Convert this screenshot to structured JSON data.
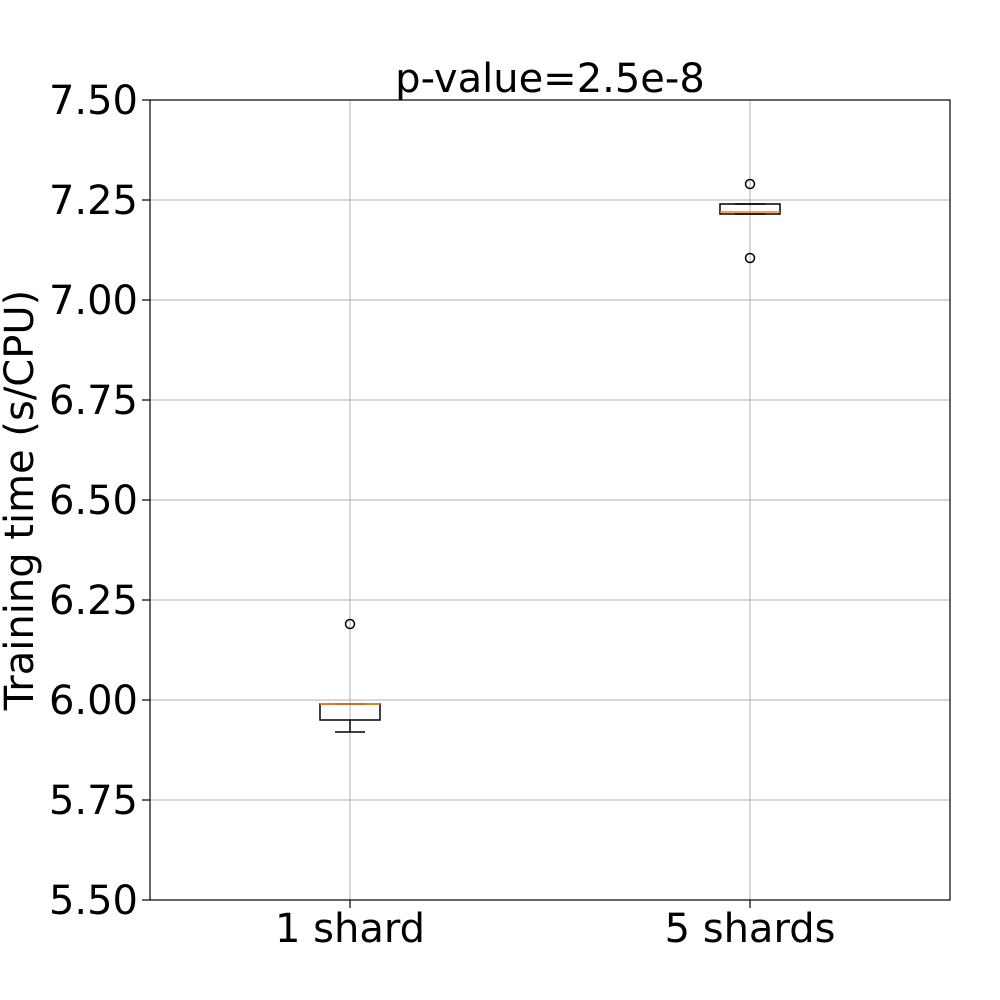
{
  "chart_data": {
    "type": "box",
    "title": "p-value=2.5e-8",
    "xlabel": "",
    "ylabel": "Training time (s/CPU)",
    "ylim": [
      5.5,
      7.5
    ],
    "yticks": [
      "5.50",
      "5.75",
      "6.00",
      "6.25",
      "6.50",
      "6.75",
      "7.00",
      "7.25",
      "7.50"
    ],
    "categories": [
      "1 shard",
      "5 shards"
    ],
    "grid": true,
    "boxes": [
      {
        "category": "1 shard",
        "whisker_low": 5.92,
        "q1": 5.95,
        "median": 5.99,
        "q3": 5.99,
        "whisker_high": 5.99,
        "outliers": [
          6.19
        ]
      },
      {
        "category": "5 shards",
        "whisker_low": 7.215,
        "q1": 7.215,
        "median": 7.22,
        "q3": 7.24,
        "whisker_high": 7.24,
        "outliers": [
          7.29,
          7.105
        ]
      }
    ],
    "colors": {
      "median": "#ff7f0e",
      "box": "#000000",
      "grid": "#b0b0b0",
      "axes": "#000000"
    }
  }
}
